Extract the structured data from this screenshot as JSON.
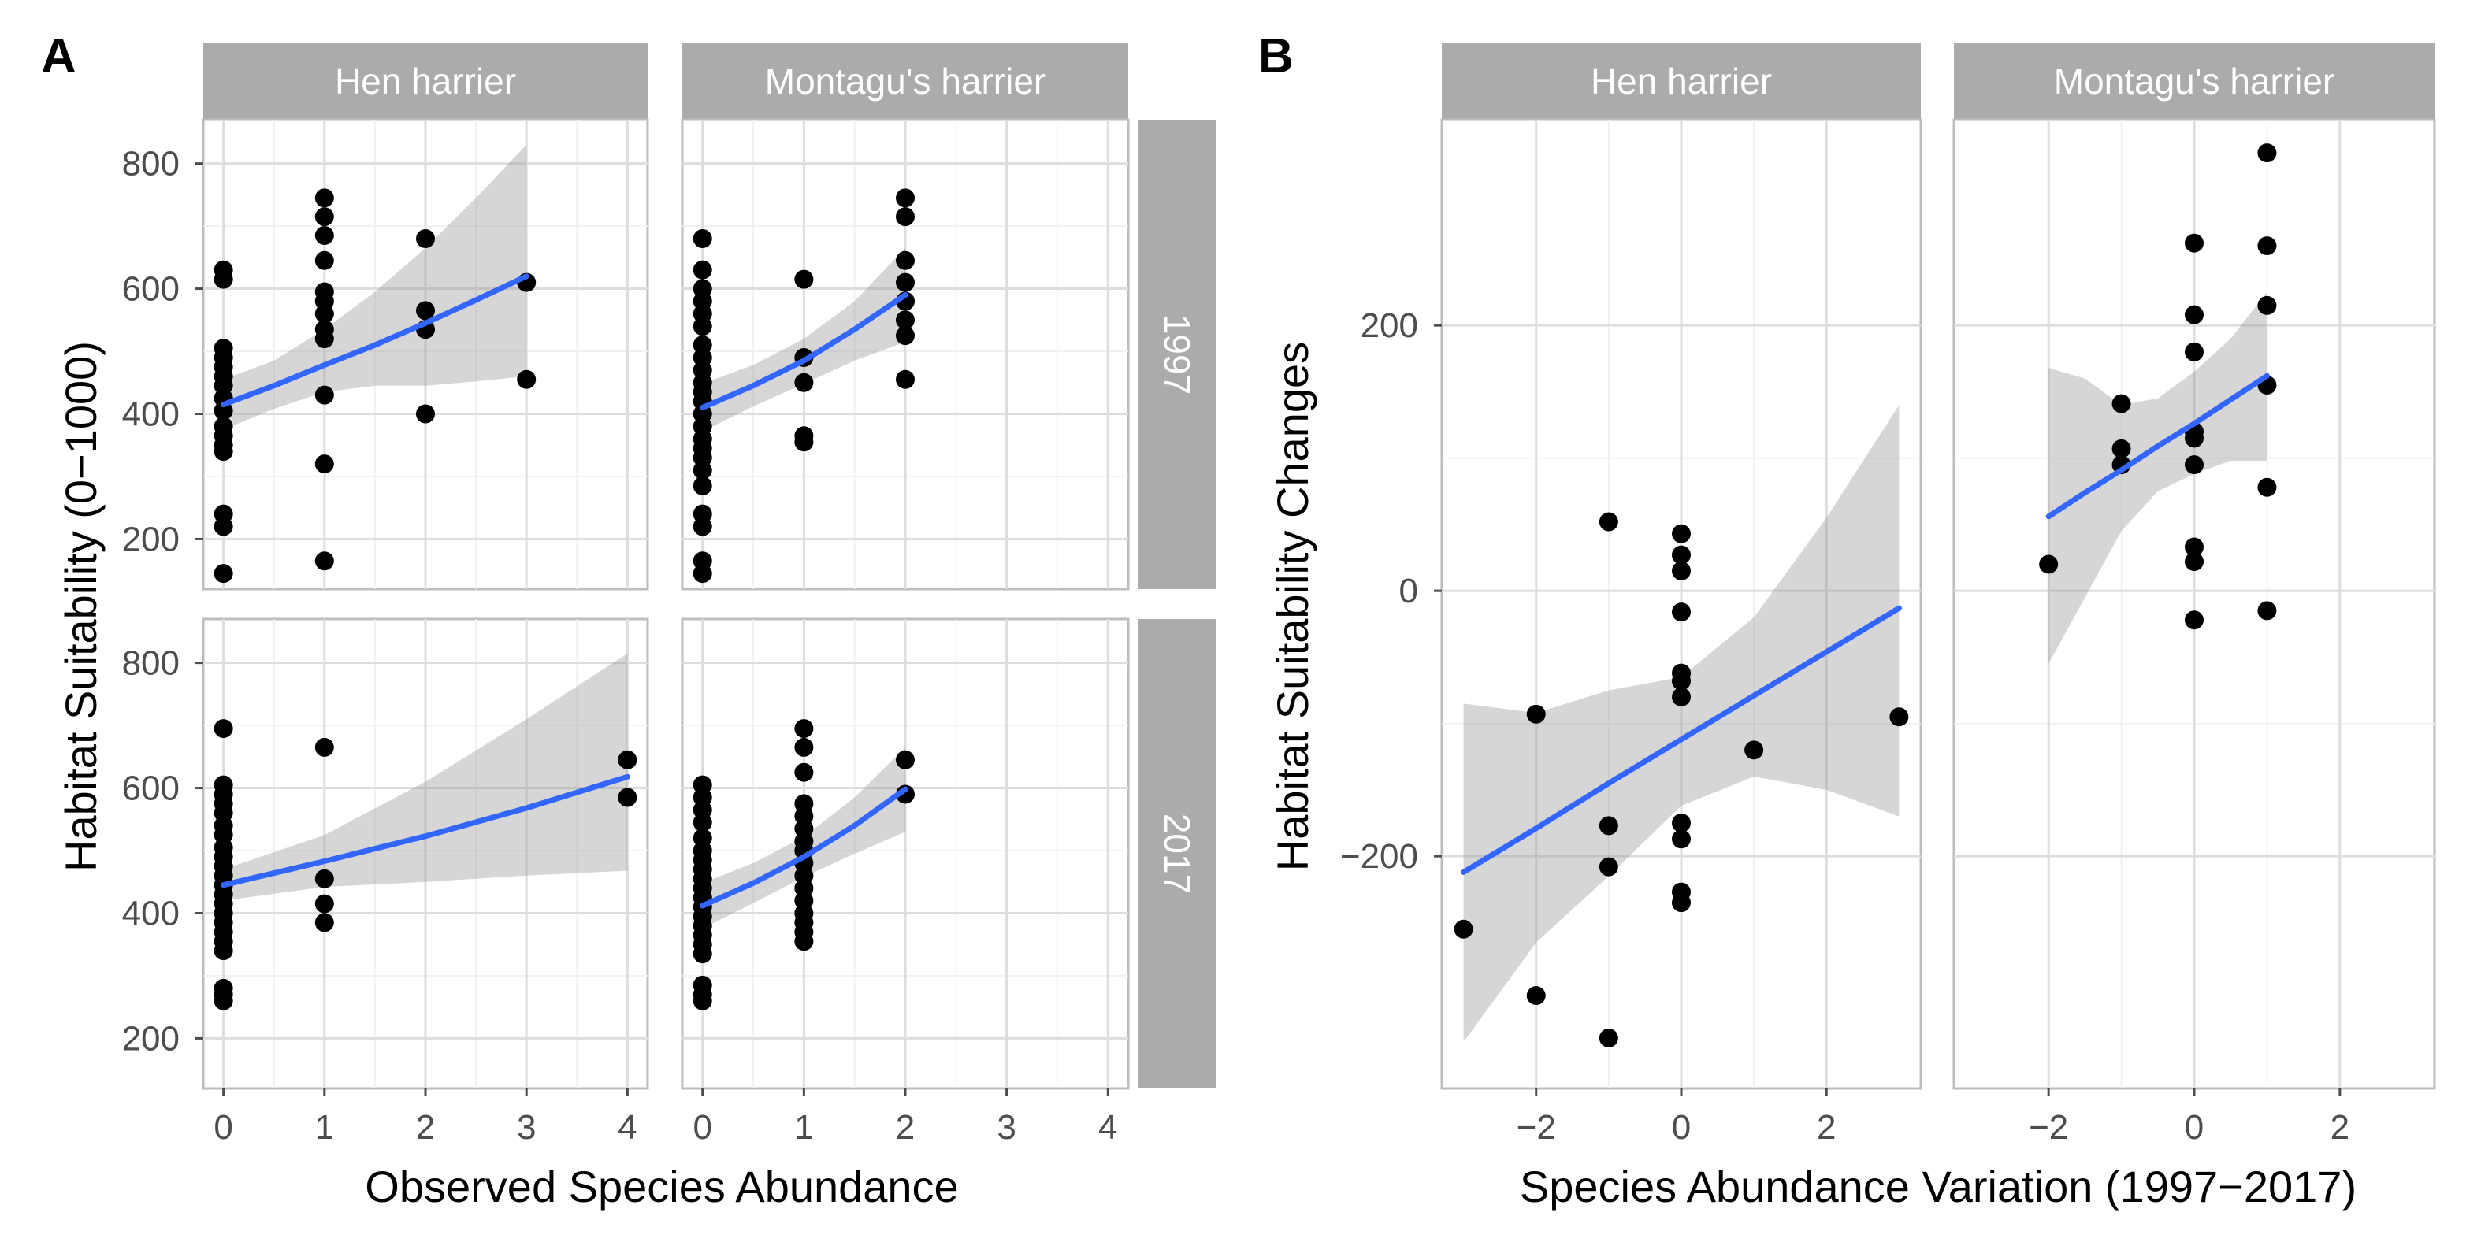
{
  "panel_labels": [
    "A",
    "B"
  ],
  "colors": {
    "fit_line": "#3366ff",
    "ribbon": "#999999",
    "strip_bg": "#ababab",
    "strip_text": "#ffffff",
    "point": "#000000",
    "grid": "#dddddd"
  },
  "chart_data": [
    {
      "id": "A",
      "type": "scatter",
      "title": "",
      "xlabel": "Observed Species Abundance",
      "ylabel": "Habitat Suitability (0−1000)",
      "xlim": [
        -0.2,
        4.2
      ],
      "ylim": [
        120,
        870
      ],
      "xticks": [
        0,
        1,
        2,
        3,
        4
      ],
      "xtick_labels": [
        "0",
        "1",
        "2",
        "3",
        "4"
      ],
      "yticks": [
        200,
        400,
        600,
        800
      ],
      "ytick_labels": [
        "200",
        "400",
        "600",
        "800"
      ],
      "col_facets": [
        "Hen harrier",
        "Montagu's harrier"
      ],
      "row_facets": [
        "1997",
        "2017"
      ],
      "panels": [
        {
          "col": 0,
          "row": 0,
          "points": [
            [
              0,
              630
            ],
            [
              0,
              615
            ],
            [
              0,
              505
            ],
            [
              0,
              490
            ],
            [
              0,
              475
            ],
            [
              0,
              460
            ],
            [
              0,
              445
            ],
            [
              0,
              425
            ],
            [
              0,
              405
            ],
            [
              0,
              380
            ],
            [
              0,
              365
            ],
            [
              0,
              350
            ],
            [
              0,
              340
            ],
            [
              0,
              240
            ],
            [
              0,
              220
            ],
            [
              0,
              145
            ],
            [
              1,
              745
            ],
            [
              1,
              715
            ],
            [
              1,
              685
            ],
            [
              1,
              645
            ],
            [
              1,
              595
            ],
            [
              1,
              580
            ],
            [
              1,
              560
            ],
            [
              1,
              535
            ],
            [
              1,
              520
            ],
            [
              1,
              430
            ],
            [
              1,
              320
            ],
            [
              1,
              165
            ],
            [
              2,
              680
            ],
            [
              2,
              565
            ],
            [
              2,
              535
            ],
            [
              2,
              400
            ],
            [
              3,
              610
            ],
            [
              3,
              455
            ]
          ],
          "fit": {
            "x": [
              0,
              0.5,
              1,
              1.5,
              2,
              2.5,
              3
            ],
            "y": [
              415,
              445,
              478,
              510,
              545,
              582,
              620
            ]
          },
          "ci_upper": {
            "x": [
              0,
              0.5,
              1,
              1.5,
              2,
              2.5,
              3
            ],
            "y": [
              455,
              485,
              535,
              595,
              665,
              745,
              830
            ]
          },
          "ci_lower": {
            "x": [
              0,
              0.5,
              1,
              1.5,
              2,
              2.5,
              3
            ],
            "y": [
              375,
              408,
              435,
              445,
              445,
              452,
              460
            ]
          }
        },
        {
          "col": 1,
          "row": 0,
          "points": [
            [
              0,
              680
            ],
            [
              0,
              630
            ],
            [
              0,
              600
            ],
            [
              0,
              580
            ],
            [
              0,
              560
            ],
            [
              0,
              540
            ],
            [
              0,
              510
            ],
            [
              0,
              490
            ],
            [
              0,
              470
            ],
            [
              0,
              450
            ],
            [
              0,
              435
            ],
            [
              0,
              420
            ],
            [
              0,
              400
            ],
            [
              0,
              380
            ],
            [
              0,
              360
            ],
            [
              0,
              345
            ],
            [
              0,
              330
            ],
            [
              0,
              310
            ],
            [
              0,
              285
            ],
            [
              0,
              240
            ],
            [
              0,
              220
            ],
            [
              0,
              165
            ],
            [
              0,
              145
            ],
            [
              1,
              615
            ],
            [
              1,
              490
            ],
            [
              1,
              450
            ],
            [
              1,
              365
            ],
            [
              1,
              355
            ],
            [
              2,
              745
            ],
            [
              2,
              715
            ],
            [
              2,
              645
            ],
            [
              2,
              610
            ],
            [
              2,
              580
            ],
            [
              2,
              550
            ],
            [
              2,
              525
            ],
            [
              2,
              455
            ]
          ],
          "fit": {
            "x": [
              0,
              0.5,
              1,
              1.5,
              2
            ],
            "y": [
              410,
              445,
              485,
              535,
              590
            ]
          },
          "ci_upper": {
            "x": [
              0,
              0.5,
              1,
              1.5,
              2
            ],
            "y": [
              448,
              478,
              520,
              580,
              665
            ]
          },
          "ci_lower": {
            "x": [
              0,
              0.5,
              1,
              1.5,
              2
            ],
            "y": [
              372,
              412,
              448,
              485,
              515
            ]
          }
        },
        {
          "col": 0,
          "row": 1,
          "points": [
            [
              0,
              695
            ],
            [
              0,
              605
            ],
            [
              0,
              590
            ],
            [
              0,
              575
            ],
            [
              0,
              560
            ],
            [
              0,
              540
            ],
            [
              0,
              525
            ],
            [
              0,
              505
            ],
            [
              0,
              490
            ],
            [
              0,
              475
            ],
            [
              0,
              460
            ],
            [
              0,
              445
            ],
            [
              0,
              430
            ],
            [
              0,
              415
            ],
            [
              0,
              400
            ],
            [
              0,
              385
            ],
            [
              0,
              370
            ],
            [
              0,
              355
            ],
            [
              0,
              340
            ],
            [
              0,
              280
            ],
            [
              0,
              270
            ],
            [
              0,
              260
            ],
            [
              1,
              665
            ],
            [
              1,
              455
            ],
            [
              1,
              415
            ],
            [
              1,
              385
            ],
            [
              4,
              645
            ],
            [
              4,
              585
            ]
          ],
          "fit": {
            "x": [
              0,
              1,
              2,
              3,
              4
            ],
            "y": [
              445,
              483,
              523,
              568,
              618
            ]
          },
          "ci_upper": {
            "x": [
              0,
              1,
              2,
              3,
              4
            ],
            "y": [
              470,
              525,
              610,
              710,
              815
            ]
          },
          "ci_lower": {
            "x": [
              0,
              1,
              2,
              3,
              4
            ],
            "y": [
              420,
              442,
              450,
              460,
              468
            ]
          }
        },
        {
          "col": 1,
          "row": 1,
          "points": [
            [
              0,
              605
            ],
            [
              0,
              585
            ],
            [
              0,
              565
            ],
            [
              0,
              545
            ],
            [
              0,
              520
            ],
            [
              0,
              500
            ],
            [
              0,
              485
            ],
            [
              0,
              470
            ],
            [
              0,
              455
            ],
            [
              0,
              440
            ],
            [
              0,
              425
            ],
            [
              0,
              410
            ],
            [
              0,
              395
            ],
            [
              0,
              380
            ],
            [
              0,
              365
            ],
            [
              0,
              350
            ],
            [
              0,
              335
            ],
            [
              0,
              285
            ],
            [
              0,
              270
            ],
            [
              0,
              260
            ],
            [
              1,
              695
            ],
            [
              1,
              665
            ],
            [
              1,
              625
            ],
            [
              1,
              575
            ],
            [
              1,
              555
            ],
            [
              1,
              535
            ],
            [
              1,
              515
            ],
            [
              1,
              500
            ],
            [
              1,
              480
            ],
            [
              1,
              460
            ],
            [
              1,
              440
            ],
            [
              1,
              420
            ],
            [
              1,
              400
            ],
            [
              1,
              385
            ],
            [
              1,
              370
            ],
            [
              1,
              355
            ],
            [
              2,
              645
            ],
            [
              2,
              590
            ]
          ],
          "fit": {
            "x": [
              0,
              0.5,
              1,
              1.5,
              2
            ],
            "y": [
              412,
              448,
              490,
              540,
              598
            ]
          },
          "ci_upper": {
            "x": [
              0,
              0.5,
              1,
              1.5,
              2
            ],
            "y": [
              448,
              480,
              522,
              585,
              665
            ]
          },
          "ci_lower": {
            "x": [
              0,
              0.5,
              1,
              1.5,
              2
            ],
            "y": [
              376,
              416,
              458,
              495,
              530
            ]
          }
        }
      ]
    },
    {
      "id": "B",
      "type": "scatter",
      "title": "",
      "xlabel": "Species Abundance Variation (1997−2017)",
      "ylabel": "Habitat Suitability Changes",
      "xlim": [
        -3.3,
        3.3
      ],
      "ylim": [
        -375,
        355
      ],
      "xticks": [
        -2,
        0,
        2
      ],
      "xtick_labels": [
        "−2",
        "0",
        "2"
      ],
      "yticks": [
        -200,
        0,
        200
      ],
      "ytick_labels": [
        "−200",
        "0",
        "200"
      ],
      "col_facets": [
        "Hen harrier",
        "Montagu's harrier"
      ],
      "panels": [
        {
          "col": 0,
          "points": [
            [
              -3,
              -255
            ],
            [
              -2,
              -93
            ],
            [
              -2,
              -305
            ],
            [
              -1,
              52
            ],
            [
              -1,
              -177
            ],
            [
              -1,
              -208
            ],
            [
              -1,
              -337
            ],
            [
              0,
              43
            ],
            [
              0,
              27
            ],
            [
              0,
              15
            ],
            [
              0,
              -16
            ],
            [
              0,
              -62
            ],
            [
              0,
              -68
            ],
            [
              0,
              -80
            ],
            [
              0,
              -175
            ],
            [
              0,
              -187
            ],
            [
              0,
              -227
            ],
            [
              0,
              -235
            ],
            [
              1,
              -120
            ],
            [
              3,
              -95
            ]
          ],
          "fit": {
            "x": [
              -3,
              -2,
              -1,
              0,
              1,
              2,
              3
            ],
            "y": [
              -212,
              -179,
              -145,
              -112,
              -79,
              -46,
              -13
            ]
          },
          "ci_upper": {
            "x": [
              -3,
              -2,
              -1,
              0,
              1,
              2,
              3
            ],
            "y": [
              -85,
              -92,
              -75,
              -65,
              -20,
              55,
              140
            ]
          },
          "ci_lower": {
            "x": [
              -3,
              -2,
              -1,
              0,
              1,
              2,
              3
            ],
            "y": [
              -340,
              -265,
              -215,
              -162,
              -140,
              -150,
              -170
            ]
          }
        },
        {
          "col": 1,
          "points": [
            [
              -2,
              20
            ],
            [
              -1,
              141
            ],
            [
              -1,
              107
            ],
            [
              -1,
              95
            ],
            [
              0,
              262
            ],
            [
              0,
              208
            ],
            [
              0,
              180
            ],
            [
              0,
              120
            ],
            [
              0,
              115
            ],
            [
              0,
              95
            ],
            [
              0,
              33
            ],
            [
              0,
              22
            ],
            [
              0,
              -22
            ],
            [
              1,
              330
            ],
            [
              1,
              260
            ],
            [
              1,
              215
            ],
            [
              1,
              155
            ],
            [
              1,
              78
            ],
            [
              1,
              -15
            ]
          ],
          "fit": {
            "x": [
              -2,
              -1.5,
              -1,
              -0.5,
              0,
              0.5,
              1
            ],
            "y": [
              56,
              74,
              91,
              109,
              126,
              144,
              162
            ]
          },
          "ci_upper": {
            "x": [
              -2,
              -1.5,
              -1,
              -0.5,
              0,
              0.5,
              1
            ],
            "y": [
              168,
              160,
              140,
              145,
              165,
              190,
              225
            ]
          },
          "ci_lower": {
            "x": [
              -2,
              -1.5,
              -1,
              -0.5,
              0,
              0.5,
              1
            ],
            "y": [
              -55,
              -5,
              45,
              75,
              88,
              98,
              98
            ]
          }
        }
      ]
    }
  ]
}
